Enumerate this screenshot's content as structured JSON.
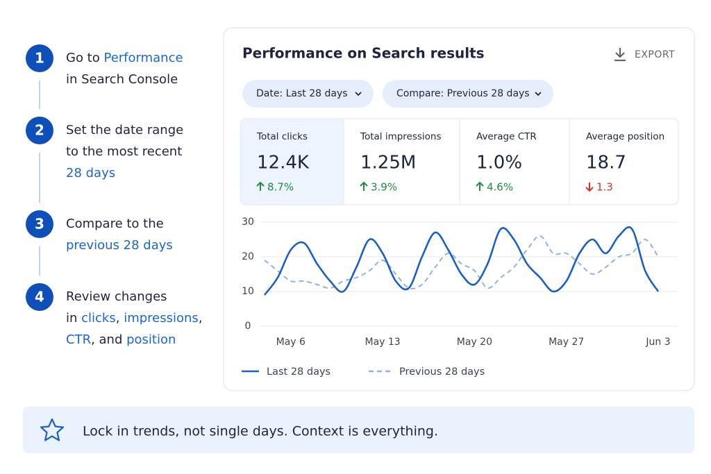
{
  "steps": [
    {
      "number": "1",
      "lines": [
        [
          {
            "text": "Go to "
          },
          {
            "text": "Performance",
            "link": true
          }
        ],
        [
          {
            "text": "in Search Console"
          }
        ]
      ]
    },
    {
      "number": "2",
      "lines": [
        [
          {
            "text": "Set the date range"
          }
        ],
        [
          {
            "text": "to the most recent"
          }
        ],
        [
          {
            "text": "28 days",
            "link": true
          }
        ]
      ]
    },
    {
      "number": "3",
      "lines": [
        [
          {
            "text": "Compare to the"
          }
        ],
        [
          {
            "text": "previous 28 days",
            "link": true
          }
        ]
      ]
    },
    {
      "number": "4",
      "lines": [
        [
          {
            "text": "Review changes"
          }
        ],
        [
          {
            "text": "in "
          },
          {
            "text": "clicks",
            "link": true
          },
          {
            "text": ", "
          },
          {
            "text": "impressions",
            "link": true
          },
          {
            "text": ","
          }
        ],
        [
          {
            "text": "CTR",
            "link": true
          },
          {
            "text": ", and "
          },
          {
            "text": "position",
            "link": true
          }
        ]
      ]
    }
  ],
  "card": {
    "title": "Performance on Search results",
    "export": "EXPORT",
    "filters": [
      "Date: Last 28 days",
      "Compare: Previous 28 days"
    ],
    "metrics": [
      {
        "label": "Total clicks",
        "value": "12.4K",
        "change": "8.7%",
        "direction": "up",
        "selected": true
      },
      {
        "label": "Total impressions",
        "value": "1.25M",
        "change": "3.9%",
        "direction": "up"
      },
      {
        "label": "Average CTR",
        "value": "1.0%",
        "change": "4.6%",
        "direction": "up"
      },
      {
        "label": "Average position",
        "value": "18.7",
        "change": "1.3",
        "direction": "down"
      }
    ]
  },
  "chart_data": {
    "type": "line",
    "x": [
      0,
      1,
      2,
      3,
      4,
      5,
      6,
      7,
      8,
      9,
      10,
      11,
      12,
      13,
      14,
      15,
      16,
      17,
      18,
      19,
      20,
      21,
      22,
      23,
      24,
      25,
      26,
      27,
      28,
      29,
      30
    ],
    "xlim": [
      0,
      30
    ],
    "xticks": [
      {
        "value": 2,
        "label": "May 6"
      },
      {
        "value": 9,
        "label": "May 13"
      },
      {
        "value": 16,
        "label": "May 20"
      },
      {
        "value": 23,
        "label": "May 27"
      },
      {
        "value": 30,
        "label": "Jun 3"
      }
    ],
    "ylim": [
      0,
      30
    ],
    "yticks": [
      0,
      10,
      20,
      30
    ],
    "grid": true,
    "series": [
      {
        "name": "Last 28 days",
        "color": "#1a5fc9",
        "dash": false,
        "values": [
          9,
          14,
          22,
          24,
          18,
          13,
          10,
          17,
          25,
          21,
          13,
          11,
          20,
          27,
          22,
          15,
          12,
          18,
          28,
          25,
          18,
          14,
          10,
          13,
          21,
          25,
          21,
          26,
          28,
          16,
          10
        ]
      },
      {
        "name": "Previous 28 days",
        "color": "#8ab4e8",
        "dash": true,
        "values": [
          19,
          16,
          13,
          13,
          12,
          11,
          13,
          14,
          16,
          19,
          15,
          11,
          12,
          17,
          21,
          18,
          16,
          11,
          14,
          17,
          22,
          26,
          21,
          21,
          18,
          15,
          17,
          20,
          21,
          25,
          20
        ]
      }
    ]
  },
  "note": "Lock in trends, not single days. Context is everything."
}
